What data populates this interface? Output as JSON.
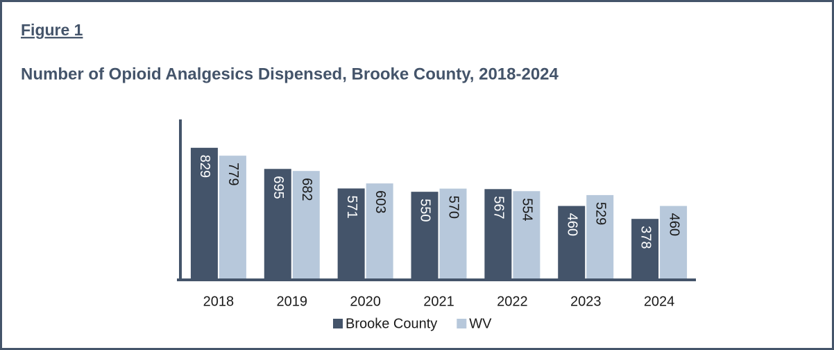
{
  "figure_label": "Figure 1",
  "chart_data": {
    "type": "bar",
    "title": "Number of Opioid Analgesics Dispensed, Brooke County, 2018-2024",
    "categories": [
      "2018",
      "2019",
      "2020",
      "2021",
      "2022",
      "2023",
      "2024"
    ],
    "series": [
      {
        "name": "Brooke County",
        "color": "#44546a",
        "values": [
          829,
          695,
          571,
          550,
          567,
          460,
          378
        ]
      },
      {
        "name": "WV",
        "color": "#b7c8db",
        "values": [
          779,
          682,
          603,
          570,
          554,
          529,
          460
        ]
      }
    ],
    "ylim": [
      0,
      1000
    ],
    "legend": "bottom"
  }
}
